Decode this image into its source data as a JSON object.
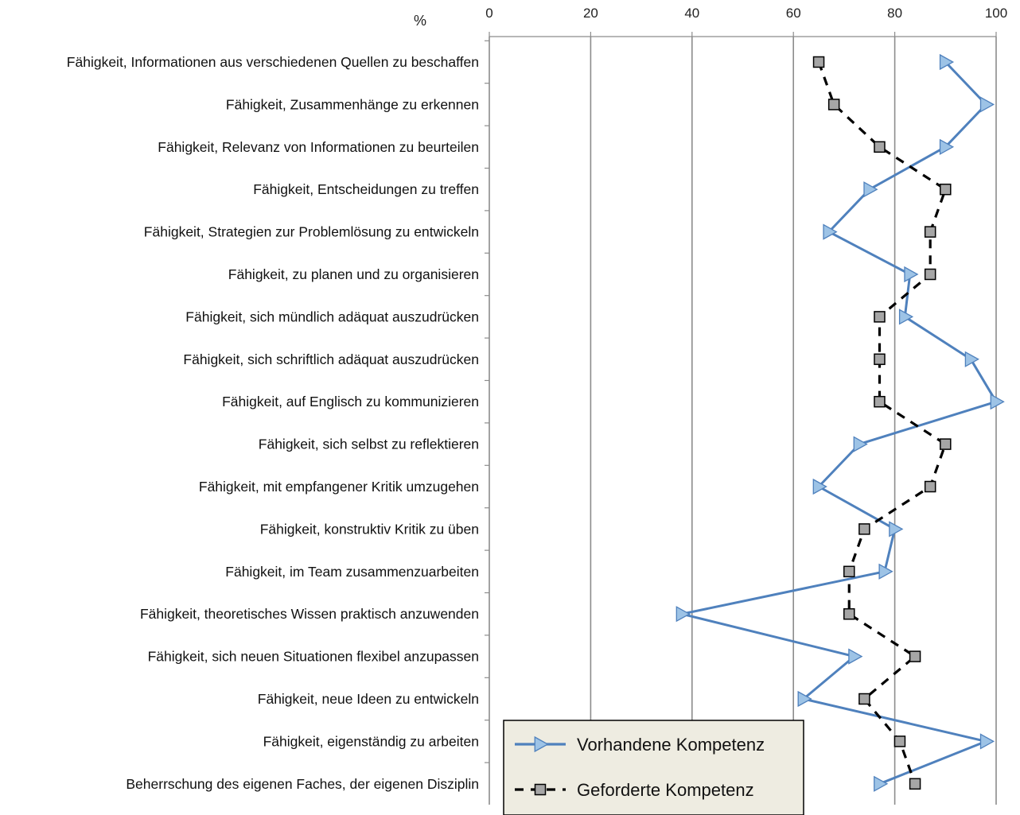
{
  "chart_data": {
    "type": "line",
    "orientation": "horizontal-categories",
    "unit_label": "%",
    "xlim": [
      0,
      100
    ],
    "x_ticks": [
      0,
      20,
      40,
      60,
      80,
      100
    ],
    "grid": true,
    "legend_position": "bottom-right",
    "categories": [
      "Fähigkeit, Informationen aus verschiedenen Quellen zu beschaffen",
      "Fähigkeit, Zusammenhänge zu erkennen",
      "Fähigkeit, Relevanz von Informationen zu beurteilen",
      "Fähigkeit, Entscheidungen zu treffen",
      "Fähigkeit, Strategien zur Problemlösung zu entwickeln",
      "Fähigkeit, zu planen und zu organisieren",
      "Fähigkeit, sich mündlich adäquat auszudrücken",
      "Fähigkeit, sich schriftlich adäquat auszudrücken",
      "Fähigkeit, auf Englisch zu kommunizieren",
      "Fähigkeit, sich selbst zu reflektieren",
      "Fähigkeit, mit empfangener Kritik umzugehen",
      "Fähigkeit, konstruktiv Kritik zu üben",
      "Fähigkeit, im Team zusammenzuarbeiten",
      "Fähigkeit, theoretisches Wissen praktisch anzuwenden",
      "Fähigkeit, sich neuen Situationen flexibel anzupassen",
      "Fähigkeit, neue Ideen zu entwickeln",
      "Fähigkeit, eigenständig zu arbeiten",
      "Beherrschung des eigenen Faches, der eigenen Disziplin"
    ],
    "series": [
      {
        "name": "Vorhandene Kompetenz",
        "color": "#4F81BD",
        "marker_fill": "#9DC3E6",
        "marker": "triangle-right",
        "line_style": "solid",
        "values": [
          90,
          98,
          90,
          75,
          67,
          83,
          82,
          95,
          100,
          73,
          65,
          80,
          78,
          38,
          72,
          62,
          98,
          77
        ]
      },
      {
        "name": "Geforderte Kompetenz",
        "color": "#000000",
        "marker_fill": "#A6A6A6",
        "marker": "square",
        "line_style": "dashed",
        "values": [
          65,
          68,
          77,
          90,
          87,
          87,
          77,
          77,
          77,
          90,
          87,
          74,
          71,
          71,
          84,
          74,
          81,
          84
        ]
      }
    ]
  }
}
